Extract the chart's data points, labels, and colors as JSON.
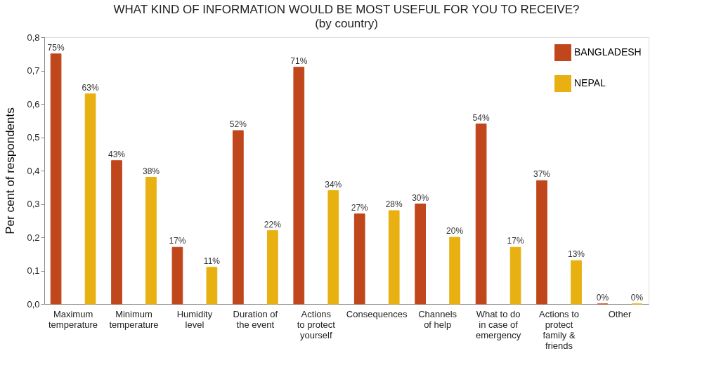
{
  "chart_data": {
    "type": "bar",
    "title": "WHAT KIND OF INFORMATION WOULD BE MOST USEFUL FOR YOU TO RECEIVE?",
    "subtitle": "(by country)",
    "ylabel": "Per cent of respondents",
    "categories": [
      "Maximum\ntemperature",
      "Minimum\ntemperature",
      "Humidity\nlevel",
      "Duration of\nthe event",
      "Actions\nto protect\nyourself",
      "Consequences",
      "Channels\nof help",
      "What to do\nin case of\nemergency",
      "Actions to\nprotect\nfamily &\nfriends",
      "Other"
    ],
    "series": [
      {
        "name": "BANGLADESH",
        "color": "#c0461c",
        "values": [
          0.75,
          0.43,
          0.17,
          0.52,
          0.71,
          0.27,
          0.3,
          0.54,
          0.37,
          0.0
        ],
        "value_labels": [
          "75%",
          "43%",
          "17%",
          "52%",
          "71%",
          "27%",
          "30%",
          "54%",
          "37%",
          "0%"
        ]
      },
      {
        "name": "NEPAL",
        "color": "#e8b010",
        "values": [
          0.63,
          0.38,
          0.11,
          0.22,
          0.34,
          0.28,
          0.2,
          0.17,
          0.13,
          0.0
        ],
        "value_labels": [
          "63%",
          "38%",
          "11%",
          "22%",
          "34%",
          "28%",
          "20%",
          "17%",
          "13%",
          "0%"
        ]
      }
    ],
    "ylim": [
      0,
      0.8
    ],
    "yticks": [
      {
        "value": 0,
        "label": "0,0"
      },
      {
        "value": 0.1,
        "label": "0,1"
      },
      {
        "value": 0.2,
        "label": "0,2"
      },
      {
        "value": 0.3,
        "label": "0,3"
      },
      {
        "value": 0.4,
        "label": "0,4"
      },
      {
        "value": 0.5,
        "label": "0,5"
      },
      {
        "value": 0.6,
        "label": "0,6"
      },
      {
        "value": 0.7,
        "label": "0,7"
      },
      {
        "value": 0.8,
        "label": "0,8"
      }
    ],
    "grid": false,
    "legend": "top right"
  }
}
